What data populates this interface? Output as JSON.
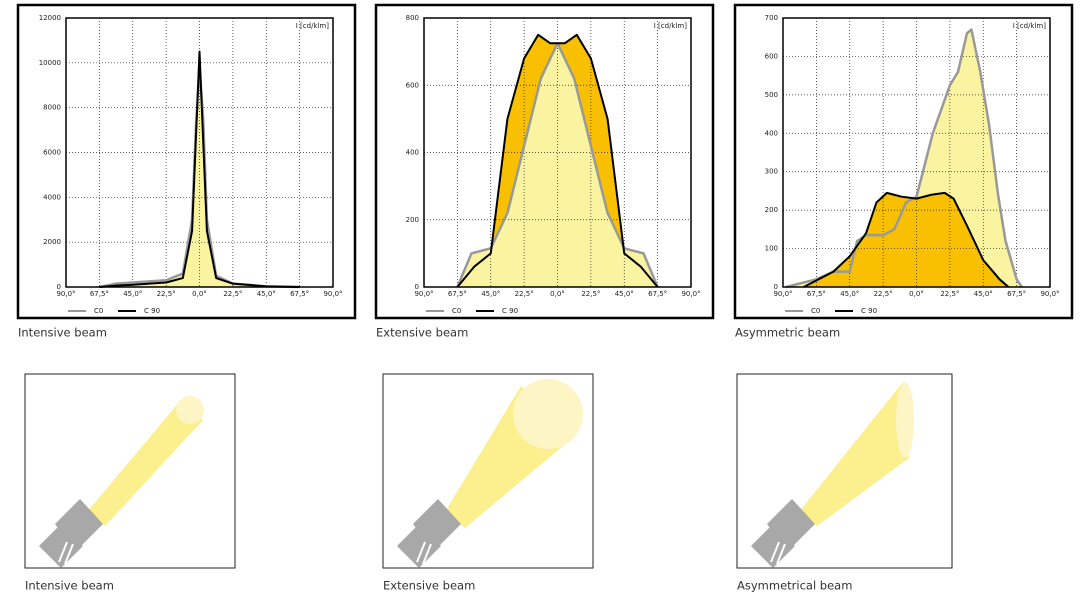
{
  "chart_data": [
    {
      "type": "line",
      "unit_label": "I [cd/klm]",
      "caption": "Intensive beam",
      "xlim": [
        -90,
        90
      ],
      "ylim": [
        0,
        12000
      ],
      "xticks": [
        {
          "value": -90,
          "label": "90,0°"
        },
        {
          "value": -67.5,
          "label": "67,5°"
        },
        {
          "value": -45,
          "label": "45,0°"
        },
        {
          "value": -22.5,
          "label": "22,5°"
        },
        {
          "value": 0,
          "label": "0,0°"
        },
        {
          "value": 22.5,
          "label": "22,5°"
        },
        {
          "value": 45,
          "label": "45,0°"
        },
        {
          "value": 67.5,
          "label": "67,5°"
        },
        {
          "value": 90,
          "label": "90,0°"
        }
      ],
      "yticks": [
        0,
        2000,
        4000,
        6000,
        8000,
        10000,
        12000
      ],
      "grid": true,
      "series": [
        {
          "name": "C0",
          "color": "#999999",
          "fill": "#faf3a0",
          "x": [
            -67.5,
            -56.25,
            -45,
            -33.75,
            -22.5,
            -11.25,
            -5,
            -2.5,
            0,
            2.5,
            5,
            11.25,
            22.5,
            45,
            67.5
          ],
          "values": [
            0,
            150,
            200,
            250,
            300,
            600,
            3000,
            7000,
            9800,
            7500,
            3000,
            500,
            150,
            30,
            0
          ]
        },
        {
          "name": "C 90",
          "color": "#000000",
          "fill": "#faf3a0",
          "x": [
            -67.5,
            -56.25,
            -45,
            -33.75,
            -22.5,
            -11.25,
            -5,
            -2.5,
            0,
            2.5,
            5,
            11.25,
            22.5,
            45,
            67.5
          ],
          "values": [
            0,
            60,
            100,
            150,
            200,
            400,
            2500,
            6500,
            10500,
            6500,
            2500,
            400,
            150,
            30,
            0
          ]
        }
      ]
    },
    {
      "type": "line",
      "unit_label": "I [cd/klm]",
      "caption": "Extensive beam",
      "xlim": [
        -90,
        90
      ],
      "ylim": [
        0,
        800
      ],
      "xticks": [
        {
          "value": -90,
          "label": "90,0°"
        },
        {
          "value": -67.5,
          "label": "67,5°"
        },
        {
          "value": -45,
          "label": "45,0°"
        },
        {
          "value": -22.5,
          "label": "22,5°"
        },
        {
          "value": 0,
          "label": "0,0°"
        },
        {
          "value": 22.5,
          "label": "22,5°"
        },
        {
          "value": 45,
          "label": "45,0°"
        },
        {
          "value": 67.5,
          "label": "67,5°"
        },
        {
          "value": 90,
          "label": "90,0°"
        }
      ],
      "yticks": [
        0,
        200,
        400,
        600,
        800
      ],
      "grid": true,
      "series": [
        {
          "name": "C0",
          "color": "#999999",
          "fill": "#faf3a0",
          "x": [
            -67.5,
            -58,
            -45,
            -33.75,
            -22.5,
            -11.25,
            0,
            11.25,
            22.5,
            33.75,
            45,
            58,
            67.5
          ],
          "values": [
            0,
            100,
            115,
            220,
            420,
            620,
            725,
            620,
            420,
            220,
            115,
            100,
            0
          ]
        },
        {
          "name": "C 90",
          "color": "#000000",
          "fill": "#f8c000",
          "x": [
            -67.5,
            -56.25,
            -45,
            -33.75,
            -22.5,
            -13,
            -5,
            0,
            5,
            13,
            22.5,
            33.75,
            45,
            56.25,
            67.5
          ],
          "values": [
            0,
            60,
            100,
            500,
            680,
            750,
            725,
            725,
            725,
            750,
            680,
            500,
            100,
            60,
            0
          ]
        }
      ]
    },
    {
      "type": "line",
      "unit_label": "I [cd/klm]",
      "caption": "Asymmetric beam",
      "xlim": [
        -90,
        90
      ],
      "ylim": [
        0,
        700
      ],
      "xticks": [
        {
          "value": -90,
          "label": "90,0°"
        },
        {
          "value": -67.5,
          "label": "67,5°"
        },
        {
          "value": -45,
          "label": "45,0°"
        },
        {
          "value": -22.5,
          "label": "22,5°"
        },
        {
          "value": 0,
          "label": "0,0°"
        },
        {
          "value": 22.5,
          "label": "22,5°"
        },
        {
          "value": 45,
          "label": "45,0°"
        },
        {
          "value": 67.5,
          "label": "67,5°"
        },
        {
          "value": 90,
          "label": "90,0°"
        }
      ],
      "yticks": [
        0,
        100,
        200,
        300,
        400,
        500,
        600,
        700
      ],
      "grid": true,
      "series": [
        {
          "name": "C0",
          "color": "#999999",
          "fill": "#faf3a0",
          "x": [
            -88,
            -67.5,
            -56,
            -45,
            -40,
            -34,
            -22.5,
            -15,
            -7,
            0,
            11,
            22.5,
            28,
            34,
            37,
            43,
            49,
            55,
            60,
            67.5,
            71
          ],
          "values": [
            0,
            20,
            40,
            40,
            120,
            135,
            135,
            150,
            220,
            235,
            400,
            525,
            560,
            660,
            670,
            560,
            420,
            240,
            120,
            20,
            0
          ]
        },
        {
          "name": "C 90",
          "color": "#000000",
          "fill": "#f8c000",
          "x": [
            -76,
            -56,
            -45,
            -34,
            -27,
            -20,
            -10,
            0,
            10,
            19,
            25,
            34,
            45,
            56,
            62
          ],
          "values": [
            0,
            40,
            80,
            140,
            220,
            245,
            235,
            230,
            240,
            245,
            230,
            160,
            70,
            20,
            0
          ]
        }
      ]
    }
  ],
  "illustrations": [
    {
      "caption": "Intensive beam"
    },
    {
      "caption": "Extensive beam"
    },
    {
      "caption": "Asymmetrical beam"
    }
  ]
}
